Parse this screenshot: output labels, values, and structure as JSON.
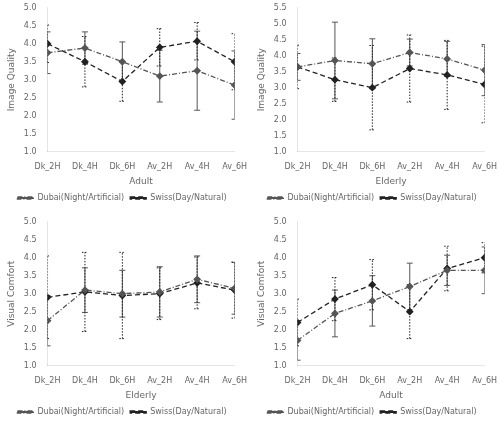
{
  "chart_data": [
    {
      "type": "line",
      "x_label": "Adult",
      "y_label": "Image Quality",
      "categories": [
        "Dk_2H",
        "Dk_4H",
        "Dk_6H",
        "Av_2H",
        "Av_4H",
        "Av_6H"
      ],
      "series": [
        {
          "name": "Dubai(Night/Artificial)",
          "color": "#555555",
          "line_style": "dashdot",
          "marker": "diamond",
          "values": [
            3.75,
            3.88,
            3.5,
            3.1,
            3.25,
            2.85
          ],
          "errors": [
            0.58,
            0.45,
            0.55,
            0.72,
            1.1,
            0.95
          ]
        },
        {
          "name": "Swiss(Day/Natural)",
          "color": "#222222",
          "line_style": "dashed",
          "marker": "diamond",
          "values": [
            4.0,
            3.5,
            2.95,
            3.9,
            4.07,
            3.5
          ],
          "errors": [
            0.52,
            0.7,
            0.55,
            0.52,
            0.52,
            0.78
          ]
        }
      ],
      "ylim": [
        1,
        5
      ],
      "yticks": [
        {
          "value": 1,
          "label": "1.0"
        },
        1.5,
        {
          "value": 2,
          "label": "2.0"
        },
        2.5,
        {
          "value": 3,
          "label": "3.0"
        },
        3.5,
        {
          "value": 4,
          "label": "4.0"
        },
        4.5,
        {
          "value": 5,
          "label": "5.0"
        }
      ],
      "grid": false,
      "legend": "bottom"
    },
    {
      "type": "line",
      "x_label": "Elderly",
      "y_label": "Image Quality",
      "categories": [
        "Dk_2H",
        "Dk_4H",
        "Dk_6H",
        "Av_2H",
        "Av_4H",
        "Av_6H"
      ],
      "series": [
        {
          "name": "Dubai(Night/Artificial)",
          "color": "#555555",
          "line_style": "dashdot",
          "marker": "diamond",
          "values": [
            3.65,
            3.85,
            3.75,
            4.1,
            3.9,
            3.55
          ],
          "errors": [
            0.42,
            1.2,
            0.78,
            0.42,
            0.55,
            0.8
          ]
        },
        {
          "name": "Swiss(Day/Natural)",
          "color": "#222222",
          "line_style": "dashed",
          "marker": "diamond",
          "values": [
            3.65,
            3.25,
            3.0,
            3.6,
            3.4,
            3.1
          ],
          "errors": [
            0.68,
            0.68,
            1.32,
            1.05,
            1.08,
            1.2
          ]
        }
      ],
      "ylim": [
        1,
        5.5
      ],
      "yticks": [
        {
          "value": 1,
          "label": "1.0"
        },
        1.5,
        {
          "value": 2,
          "label": "2.0"
        },
        2.5,
        {
          "value": 3,
          "label": "3.0"
        },
        3.5,
        {
          "value": 4,
          "label": "4.0"
        },
        4.5,
        {
          "value": 5,
          "label": "5.0"
        },
        5.5
      ],
      "grid": false,
      "legend": "bottom"
    },
    {
      "type": "line",
      "x_label": "Elderly",
      "y_label": "Visual Comfort",
      "categories": [
        "Dk_2H",
        "Dk_4H",
        "Dk_6H",
        "Av_2H",
        "Av_4H",
        "Av_6H"
      ],
      "series": [
        {
          "name": "Dubai(Night/Artificial)",
          "color": "#555555",
          "line_style": "dashdot",
          "marker": "diamond",
          "values": [
            2.25,
            3.1,
            3.0,
            3.05,
            3.4,
            3.15
          ],
          "errors": [
            0.7,
            0.62,
            0.65,
            0.7,
            0.65,
            0.72
          ]
        },
        {
          "name": "Swiss(Day/Natural)",
          "color": "#222222",
          "line_style": "dashed",
          "marker": "diamond",
          "values": [
            2.9,
            3.05,
            2.95,
            3.0,
            3.3,
            3.1
          ],
          "errors": [
            1.15,
            1.1,
            1.2,
            0.72,
            0.72,
            0.78
          ]
        }
      ],
      "ylim": [
        1,
        5
      ],
      "yticks": [
        {
          "value": 1,
          "label": "1.0"
        },
        1.5,
        {
          "value": 2,
          "label": "2.0"
        },
        2.5,
        {
          "value": 3,
          "label": "3.0"
        },
        3.5,
        {
          "value": 4,
          "label": "4.0"
        },
        4.5,
        {
          "value": 5,
          "label": "5.0"
        }
      ],
      "grid": false,
      "legend": "bottom"
    },
    {
      "type": "line",
      "x_label": "Adult",
      "y_label": "Visual Comfort",
      "categories": [
        "Dk_2H",
        "Dk_4H",
        "Dk_6H",
        "Av_2H",
        "Av_4H",
        "Av_6H"
      ],
      "series": [
        {
          "name": "Dubai(Night/Artificial)",
          "color": "#555555",
          "line_style": "dashdot",
          "marker": "diamond",
          "values": [
            1.7,
            2.45,
            2.8,
            3.2,
            3.65,
            3.65
          ],
          "errors": [
            0.55,
            0.65,
            0.7,
            0.65,
            0.42,
            0.65
          ]
        },
        {
          "name": "Swiss(Day/Natural)",
          "color": "#222222",
          "line_style": "dashed",
          "marker": "diamond",
          "values": [
            2.2,
            2.85,
            3.25,
            2.5,
            3.7,
            4.0
          ],
          "errors": [
            0.65,
            0.6,
            0.7,
            0.75,
            0.62,
            0.42
          ]
        }
      ],
      "ylim": [
        1,
        5
      ],
      "yticks": [
        {
          "value": 1,
          "label": "1.0"
        },
        1.5,
        {
          "value": 2,
          "label": "2.0"
        },
        2.5,
        {
          "value": 3,
          "label": "3.0"
        },
        3.5,
        {
          "value": 4,
          "label": "4.0"
        },
        4.5,
        {
          "value": 5,
          "label": "5.0"
        }
      ],
      "grid": false,
      "legend": "bottom"
    }
  ]
}
